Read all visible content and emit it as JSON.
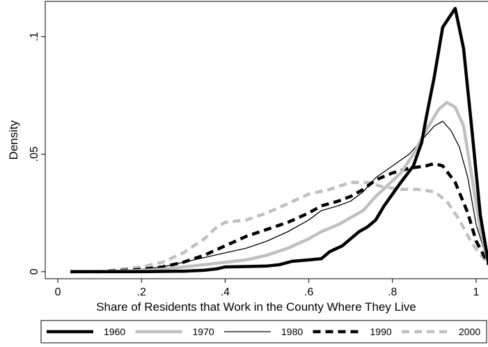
{
  "chart_data": {
    "type": "line",
    "title": "",
    "xlabel": "Share of Residents that Work in the County Where They Live",
    "ylabel": "Density",
    "xlim": [
      -0.03,
      1.03
    ],
    "ylim": [
      -0.003,
      0.115
    ],
    "xticks": [
      0,
      0.2,
      0.4,
      0.6,
      0.8,
      1
    ],
    "xtick_labels": [
      "0",
      ".2",
      ".4",
      ".6",
      ".8",
      "1"
    ],
    "yticks": [
      0,
      0.05,
      0.1
    ],
    "ytick_labels": [
      "0",
      ".05",
      ".1"
    ],
    "grid": false,
    "legend_position": "bottom",
    "series": [
      {
        "name": "1960",
        "color": "#000000",
        "style": "solid-thick",
        "points": [
          [
            0.03,
            0
          ],
          [
            0.1,
            0
          ],
          [
            0.2,
            0
          ],
          [
            0.3,
            0.0002
          ],
          [
            0.35,
            0.0006
          ],
          [
            0.38,
            0.0012
          ],
          [
            0.4,
            0.002
          ],
          [
            0.45,
            0.0022
          ],
          [
            0.5,
            0.0024
          ],
          [
            0.53,
            0.003
          ],
          [
            0.56,
            0.0044
          ],
          [
            0.6,
            0.005
          ],
          [
            0.63,
            0.0055
          ],
          [
            0.65,
            0.0085
          ],
          [
            0.68,
            0.011
          ],
          [
            0.7,
            0.014
          ],
          [
            0.72,
            0.017
          ],
          [
            0.74,
            0.019
          ],
          [
            0.76,
            0.022
          ],
          [
            0.78,
            0.028
          ],
          [
            0.8,
            0.033
          ],
          [
            0.82,
            0.038
          ],
          [
            0.85,
            0.045
          ],
          [
            0.87,
            0.055
          ],
          [
            0.88,
            0.065
          ],
          [
            0.9,
            0.083
          ],
          [
            0.92,
            0.104
          ],
          [
            0.95,
            0.112
          ],
          [
            0.97,
            0.095
          ],
          [
            0.99,
            0.06
          ],
          [
            1.01,
            0.024
          ],
          [
            1.03,
            0.003
          ]
        ]
      },
      {
        "name": "1970",
        "color": "#c0c0c0",
        "style": "solid-thick",
        "points": [
          [
            0.03,
            0
          ],
          [
            0.1,
            0
          ],
          [
            0.2,
            0.0005
          ],
          [
            0.25,
            0.001
          ],
          [
            0.3,
            0.002
          ],
          [
            0.35,
            0.003
          ],
          [
            0.4,
            0.004
          ],
          [
            0.45,
            0.005
          ],
          [
            0.5,
            0.007
          ],
          [
            0.55,
            0.01
          ],
          [
            0.6,
            0.014
          ],
          [
            0.63,
            0.017
          ],
          [
            0.67,
            0.02
          ],
          [
            0.7,
            0.023
          ],
          [
            0.73,
            0.026
          ],
          [
            0.76,
            0.032
          ],
          [
            0.79,
            0.037
          ],
          [
            0.82,
            0.042
          ],
          [
            0.85,
            0.05
          ],
          [
            0.88,
            0.06
          ],
          [
            0.91,
            0.069
          ],
          [
            0.93,
            0.072
          ],
          [
            0.95,
            0.07
          ],
          [
            0.97,
            0.062
          ],
          [
            0.99,
            0.04
          ],
          [
            1.01,
            0.018
          ],
          [
            1.03,
            0.003
          ]
        ]
      },
      {
        "name": "1980",
        "color": "#000000",
        "style": "solid-thin",
        "points": [
          [
            0.03,
            0
          ],
          [
            0.1,
            0
          ],
          [
            0.2,
            0.001
          ],
          [
            0.25,
            0.002
          ],
          [
            0.3,
            0.004
          ],
          [
            0.35,
            0.006
          ],
          [
            0.4,
            0.008
          ],
          [
            0.45,
            0.01
          ],
          [
            0.5,
            0.013
          ],
          [
            0.55,
            0.017
          ],
          [
            0.6,
            0.022
          ],
          [
            0.63,
            0.026
          ],
          [
            0.67,
            0.028
          ],
          [
            0.7,
            0.03
          ],
          [
            0.73,
            0.034
          ],
          [
            0.76,
            0.04
          ],
          [
            0.8,
            0.045
          ],
          [
            0.84,
            0.05
          ],
          [
            0.87,
            0.056
          ],
          [
            0.9,
            0.062
          ],
          [
            0.92,
            0.064
          ],
          [
            0.94,
            0.06
          ],
          [
            0.96,
            0.053
          ],
          [
            0.98,
            0.04
          ],
          [
            1.0,
            0.02
          ],
          [
            1.03,
            0.003
          ]
        ]
      },
      {
        "name": "1990",
        "color": "#000000",
        "style": "dashed-thick",
        "points": [
          [
            0.03,
            0
          ],
          [
            0.1,
            0
          ],
          [
            0.2,
            0.001
          ],
          [
            0.25,
            0.002
          ],
          [
            0.3,
            0.004
          ],
          [
            0.35,
            0.007
          ],
          [
            0.4,
            0.011
          ],
          [
            0.45,
            0.015
          ],
          [
            0.5,
            0.018
          ],
          [
            0.55,
            0.021
          ],
          [
            0.6,
            0.025
          ],
          [
            0.63,
            0.028
          ],
          [
            0.67,
            0.03
          ],
          [
            0.7,
            0.032
          ],
          [
            0.73,
            0.035
          ],
          [
            0.76,
            0.039
          ],
          [
            0.8,
            0.042
          ],
          [
            0.84,
            0.044
          ],
          [
            0.88,
            0.045
          ],
          [
            0.9,
            0.046
          ],
          [
            0.92,
            0.045
          ],
          [
            0.95,
            0.038
          ],
          [
            0.98,
            0.025
          ],
          [
            1.0,
            0.013
          ],
          [
            1.03,
            0.003
          ]
        ]
      },
      {
        "name": "2000",
        "color": "#c0c0c0",
        "style": "dashed-thick",
        "points": [
          [
            0.03,
            0
          ],
          [
            0.1,
            0
          ],
          [
            0.2,
            0.002
          ],
          [
            0.25,
            0.004
          ],
          [
            0.3,
            0.008
          ],
          [
            0.35,
            0.014
          ],
          [
            0.38,
            0.019
          ],
          [
            0.4,
            0.021
          ],
          [
            0.45,
            0.022
          ],
          [
            0.5,
            0.025
          ],
          [
            0.55,
            0.029
          ],
          [
            0.6,
            0.033
          ],
          [
            0.65,
            0.035
          ],
          [
            0.7,
            0.038
          ],
          [
            0.74,
            0.038
          ],
          [
            0.78,
            0.036
          ],
          [
            0.82,
            0.035
          ],
          [
            0.86,
            0.035
          ],
          [
            0.9,
            0.034
          ],
          [
            0.93,
            0.03
          ],
          [
            0.96,
            0.022
          ],
          [
            0.99,
            0.012
          ],
          [
            1.03,
            0.003
          ]
        ]
      }
    ]
  }
}
